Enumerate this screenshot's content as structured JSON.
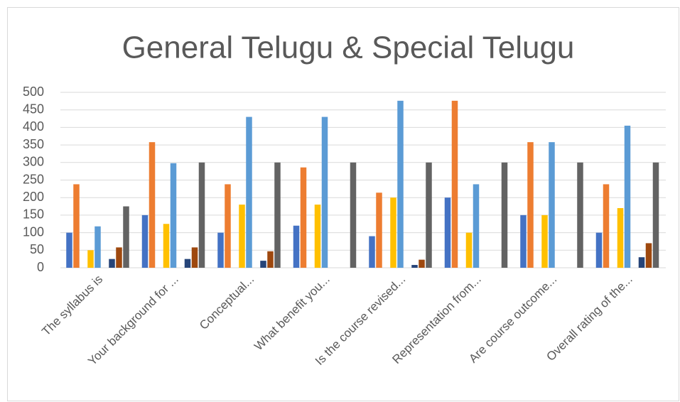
{
  "chart_data": {
    "type": "bar",
    "title": "General Telugu & Special Telugu",
    "categories": [
      "The syllabus is",
      "Your background for ...",
      "Conceptual...",
      "What benefit you...",
      "Is the course revised...",
      "Representation from...",
      "Are course outcome...",
      "Overall rating of the..."
    ],
    "series": [
      {
        "color": "#4472c4",
        "values": [
          100,
          150,
          100,
          120,
          90,
          200,
          150,
          100
        ]
      },
      {
        "color": "#ed7d31",
        "values": [
          238,
          358,
          238,
          286,
          214,
          476,
          358,
          238
        ]
      },
      {
        "color": "#a5a5a5",
        "values": [
          0,
          0,
          0,
          0,
          0,
          0,
          0,
          0
        ]
      },
      {
        "color": "#ffc000",
        "values": [
          50,
          125,
          180,
          180,
          200,
          100,
          150,
          170
        ]
      },
      {
        "color": "#5b9bd5",
        "values": [
          118,
          298,
          430,
          430,
          476,
          238,
          358,
          405
        ]
      },
      {
        "color": "#70ad47",
        "values": [
          0,
          0,
          0,
          0,
          0,
          0,
          0,
          0
        ]
      },
      {
        "color": "#264478",
        "values": [
          25,
          25,
          20,
          0,
          8,
          0,
          0,
          30
        ]
      },
      {
        "color": "#9e480e",
        "values": [
          58,
          58,
          47,
          0,
          23,
          0,
          0,
          70
        ]
      },
      {
        "color": "#636363",
        "values": [
          175,
          300,
          300,
          300,
          300,
          300,
          300,
          300
        ]
      }
    ],
    "ylim": [
      0,
      500
    ],
    "yticks": [
      0,
      50,
      100,
      150,
      200,
      250,
      300,
      350,
      400,
      450,
      500
    ],
    "grid": true
  }
}
